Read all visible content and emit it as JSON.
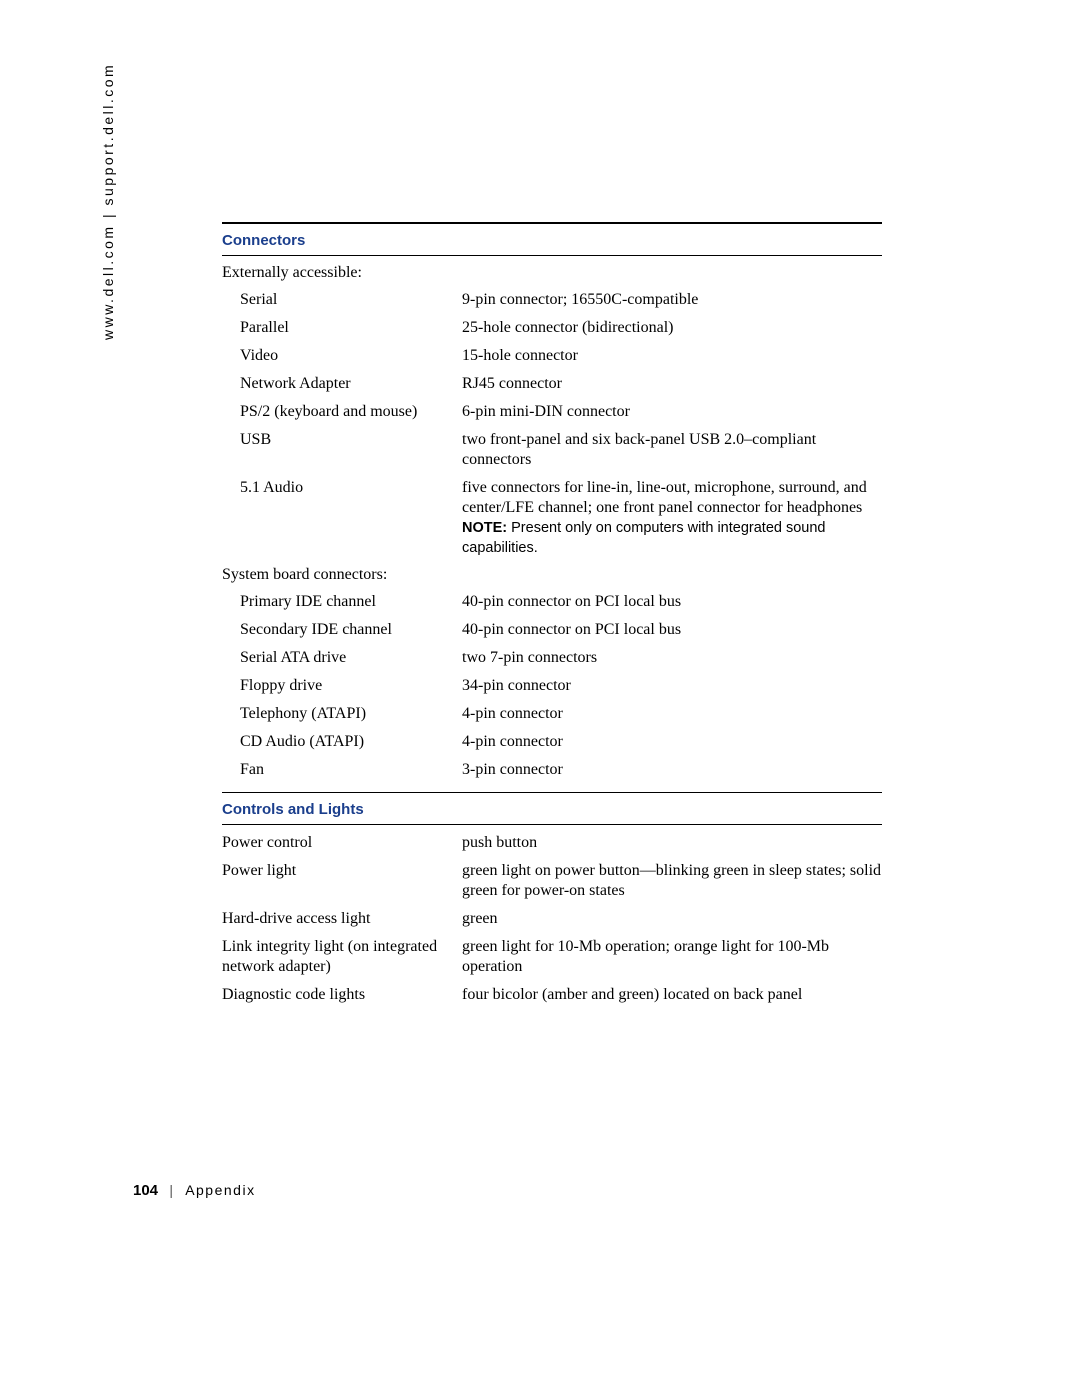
{
  "side_url": "www.dell.com | support.dell.com",
  "sections": {
    "connectors": {
      "title": "Connectors",
      "group1_label": "Externally accessible:",
      "g1": {
        "r0": {
          "label": "Serial",
          "value": "9-pin connector; 16550C-compatible"
        },
        "r1": {
          "label": "Parallel",
          "value": "25-hole connector (bidirectional)"
        },
        "r2": {
          "label": "Video",
          "value": "15-hole connector"
        },
        "r3": {
          "label": "Network Adapter",
          "value": "RJ45 connector"
        },
        "r4": {
          "label": "PS/2 (keyboard and mouse)",
          "value": "6-pin mini-DIN connector"
        },
        "r5": {
          "label": "USB",
          "value": "two front-panel and six back-panel USB 2.0–compliant connectors"
        },
        "r6": {
          "label": "5.1 Audio",
          "value": "five connectors for line-in, line-out, microphone, surround, and center/LFE channel; one front panel connector for headphones",
          "note_bold": "NOTE:",
          "note_rest": " Present only on computers with integrated sound capabilities."
        }
      },
      "group2_label": "System board connectors:",
      "g2": {
        "r0": {
          "label": "Primary IDE channel",
          "value": "40-pin connector on PCI local bus"
        },
        "r1": {
          "label": "Secondary IDE channel",
          "value": "40-pin connector on PCI local bus"
        },
        "r2": {
          "label": "Serial ATA drive",
          "value": "two 7-pin connectors"
        },
        "r3": {
          "label": "Floppy drive",
          "value": "34-pin connector"
        },
        "r4": {
          "label": "Telephony (ATAPI)",
          "value": "4-pin connector"
        },
        "r5": {
          "label": "CD Audio (ATAPI)",
          "value": "4-pin connector"
        },
        "r6": {
          "label": "Fan",
          "value": "3-pin connector"
        }
      }
    },
    "controls": {
      "title": "Controls and Lights",
      "rows": {
        "r0": {
          "label": "Power control",
          "value": "push button"
        },
        "r1": {
          "label": "Power light",
          "value": "green light on power button—blinking green in sleep states; solid green for power-on states"
        },
        "r2": {
          "label": "Hard-drive access light",
          "value": "green"
        },
        "r3": {
          "label": "Link integrity light (on integrated network adapter)",
          "value": "green light for 10-Mb operation; orange light for 100-Mb operation"
        },
        "r4": {
          "label": "Diagnostic code lights",
          "value": "four bicolor (amber and green) located on back panel"
        }
      }
    }
  },
  "footer": {
    "page": "104",
    "separator": "|",
    "section": "Appendix"
  },
  "colors": {
    "heading": "#1a3e8c",
    "text": "#000000",
    "background": "#ffffff"
  }
}
